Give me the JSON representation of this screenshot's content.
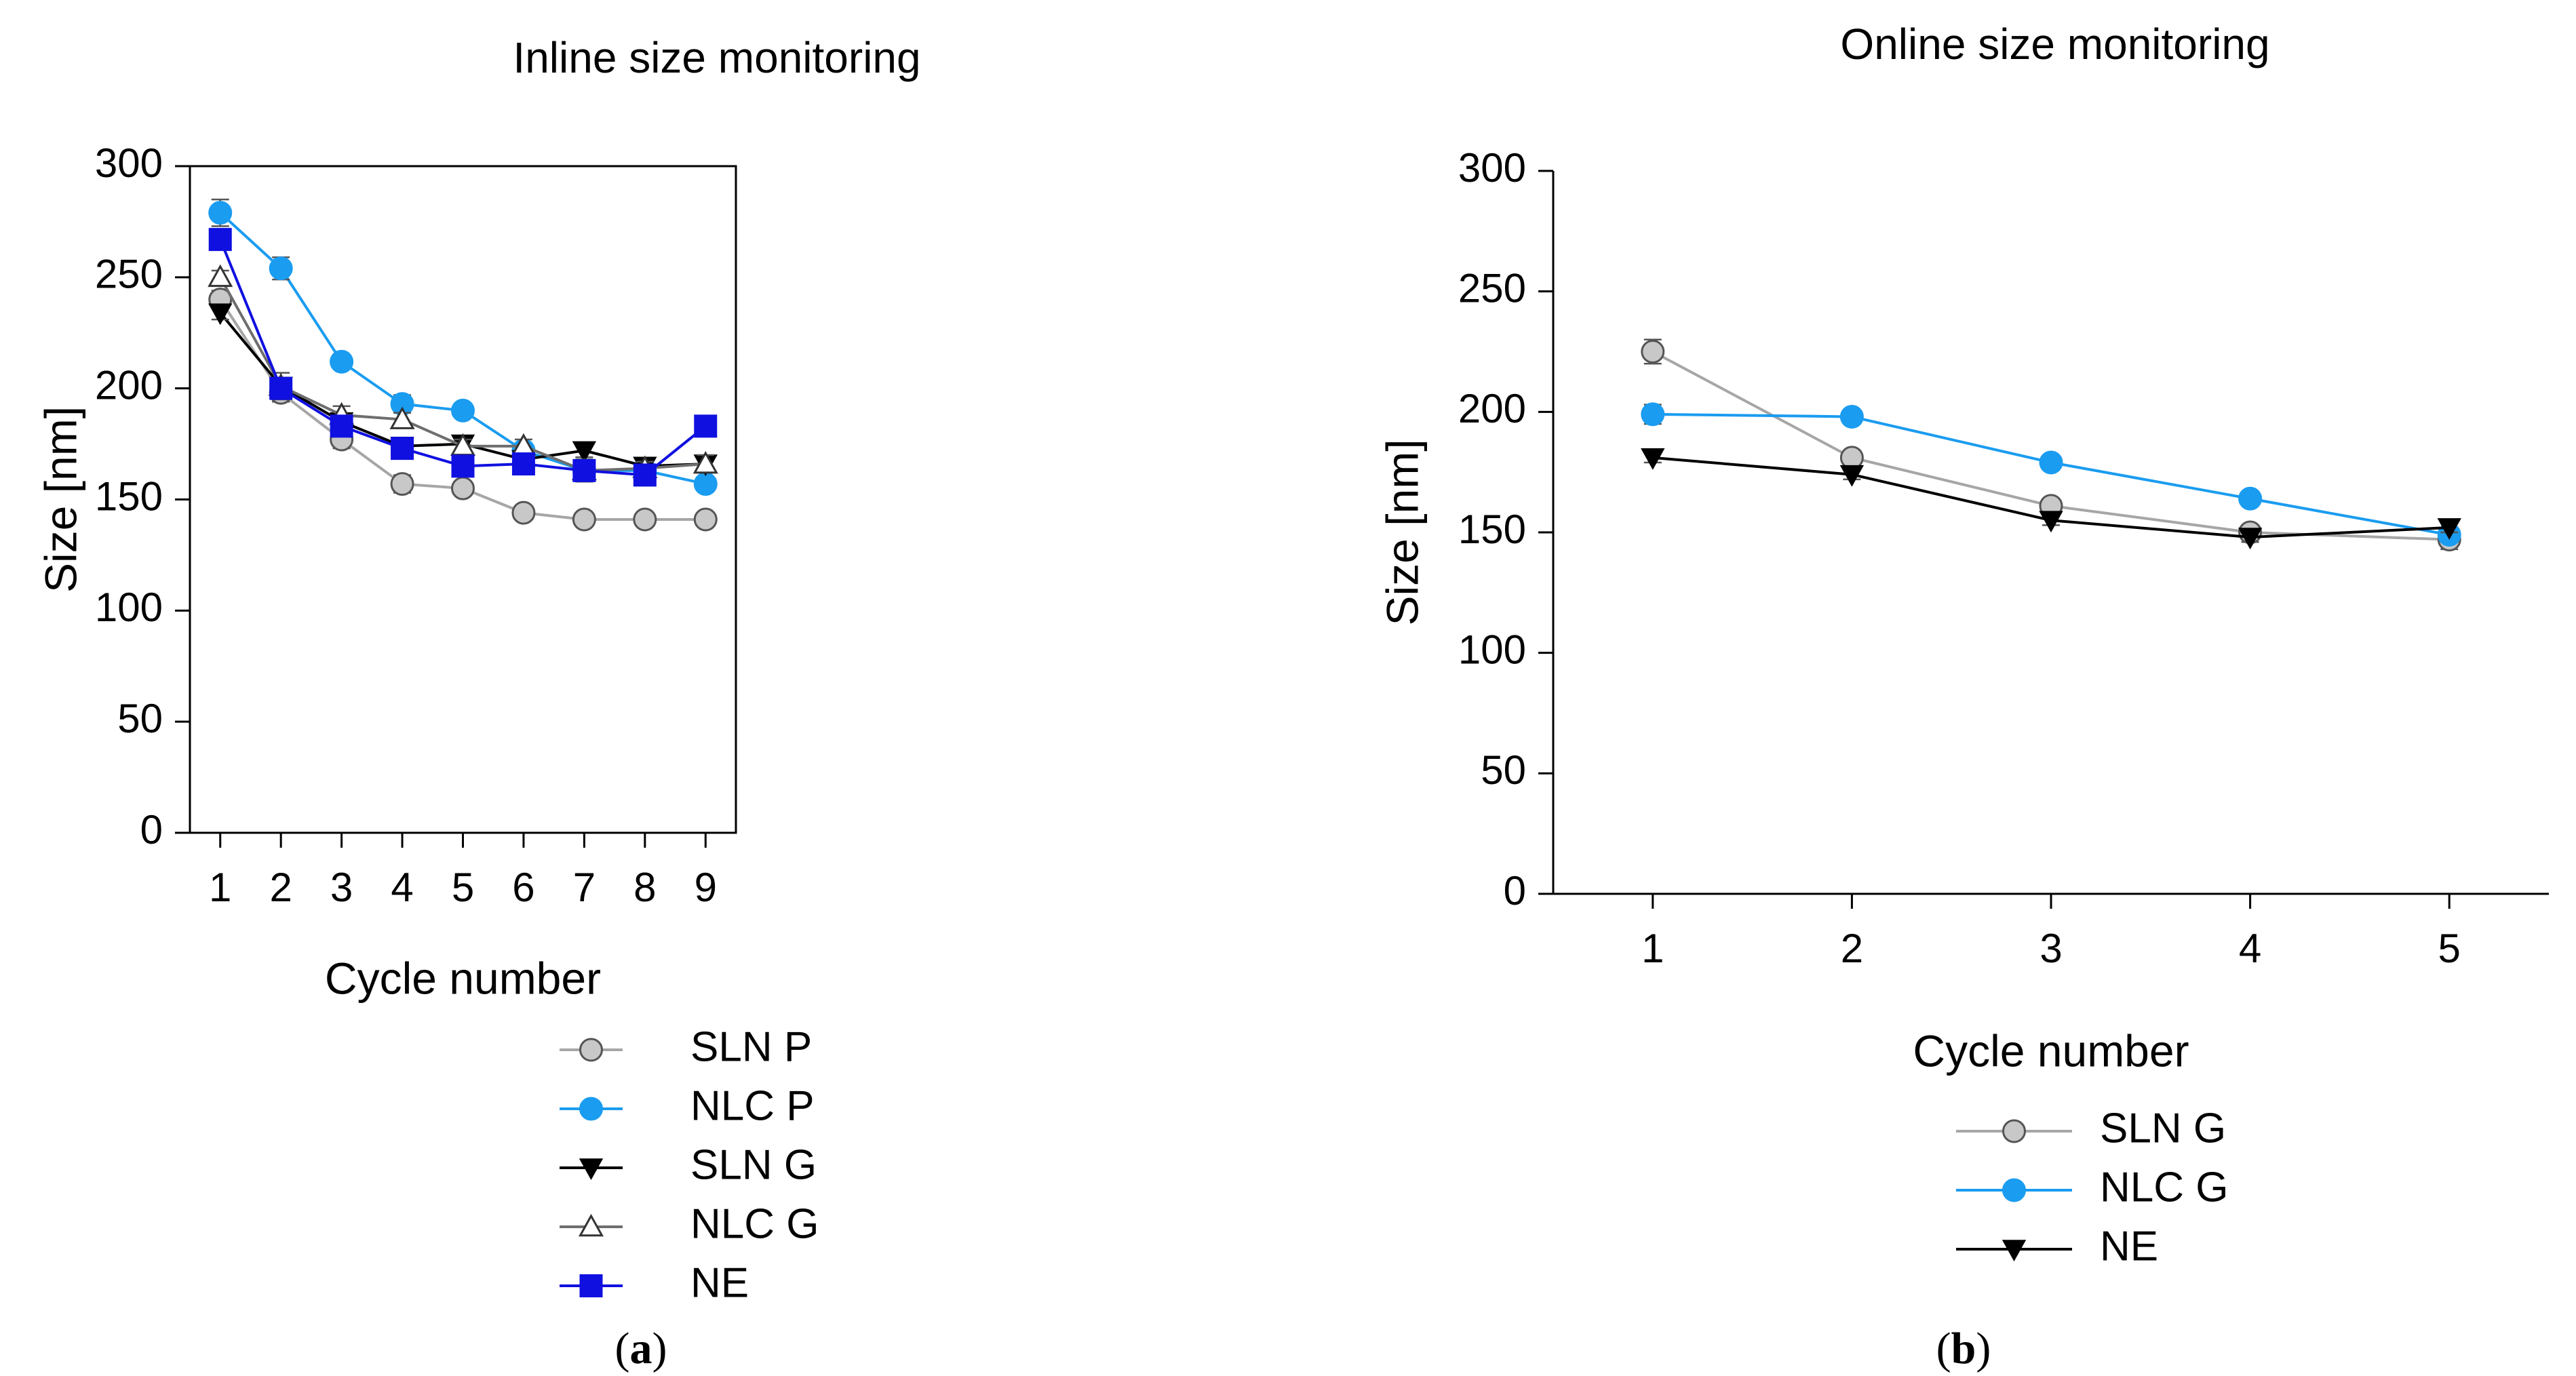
{
  "chart_data": [
    {
      "type": "line",
      "panel_label": "a",
      "title": "Inline size monitoring",
      "xlabel": "Cycle number",
      "ylabel": "Size [nm]",
      "x": [
        1,
        2,
        3,
        4,
        5,
        6,
        7,
        8,
        9
      ],
      "xlim": [
        0.5,
        9.5
      ],
      "ylim": [
        0,
        300
      ],
      "yticks": [
        0,
        50,
        100,
        150,
        200,
        250,
        300
      ],
      "xticks": [
        1,
        2,
        3,
        4,
        5,
        6,
        7,
        8,
        9
      ],
      "grid": false,
      "legend_position": "below",
      "series": [
        {
          "name": "SLN P",
          "marker": "circle-open",
          "color": "#a6a6a6",
          "marker_fill": "#c8c8c8",
          "values": [
            240,
            198,
            177,
            157,
            155,
            144,
            141,
            141,
            141
          ],
          "errors": [
            4,
            4,
            4,
            4,
            3,
            3,
            3,
            3,
            3
          ]
        },
        {
          "name": "NLC P",
          "marker": "circle",
          "color": "#1a9cf0",
          "marker_fill": "#1a9cf0",
          "values": [
            279,
            254,
            212,
            193,
            190,
            172,
            163,
            163,
            157
          ],
          "errors": [
            6,
            5,
            3,
            4,
            3,
            3,
            3,
            3,
            3
          ]
        },
        {
          "name": "SLN G",
          "marker": "triangle-down",
          "color": "#000000",
          "marker_fill": "#000000",
          "values": [
            234,
            201,
            185,
            174,
            175,
            168,
            172,
            165,
            166
          ],
          "errors": [
            3,
            3,
            3,
            3,
            3,
            3,
            3,
            3,
            3
          ]
        },
        {
          "name": "NLC G",
          "marker": "triangle-up-open",
          "color": "#6e6e6e",
          "marker_fill": "#ffffff",
          "values": [
            250,
            201,
            188,
            186,
            174,
            174,
            163,
            164,
            166
          ],
          "errors": [
            3,
            6,
            4,
            3,
            3,
            3,
            5,
            3,
            4
          ]
        },
        {
          "name": "NE",
          "marker": "square",
          "color": "#1010e0",
          "marker_fill": "#1010e0",
          "values": [
            267,
            200,
            183,
            173,
            165,
            166,
            163,
            161,
            183
          ],
          "errors": [
            3,
            3,
            3,
            3,
            3,
            3,
            3,
            3,
            3
          ]
        }
      ]
    },
    {
      "type": "line",
      "panel_label": "b",
      "title": "Online size monitoring",
      "xlabel": "Cycle number",
      "ylabel": "Size [nm]",
      "x": [
        1,
        2,
        3,
        4,
        5
      ],
      "xlim": [
        0.5,
        5.5
      ],
      "ylim": [
        0,
        300
      ],
      "yticks": [
        0,
        50,
        100,
        150,
        200,
        250,
        300
      ],
      "xticks": [
        1,
        2,
        3,
        4,
        5
      ],
      "grid": false,
      "legend_position": "below",
      "series": [
        {
          "name": "SLN G",
          "marker": "circle-open",
          "color": "#a6a6a6",
          "marker_fill": "#c8c8c8",
          "values": [
            225,
            181,
            161,
            150,
            147
          ],
          "errors": [
            5,
            3,
            3,
            3,
            4
          ]
        },
        {
          "name": "NLC G",
          "marker": "circle",
          "color": "#1a9cf0",
          "marker_fill": "#1a9cf0",
          "values": [
            199,
            198,
            179,
            164,
            149
          ],
          "errors": [
            4,
            3,
            3,
            3,
            3
          ]
        },
        {
          "name": "NE",
          "marker": "triangle-down",
          "color": "#000000",
          "marker_fill": "#000000",
          "values": [
            181,
            174,
            155,
            148,
            152
          ],
          "errors": [
            2,
            2,
            2,
            2,
            2
          ]
        }
      ]
    }
  ]
}
